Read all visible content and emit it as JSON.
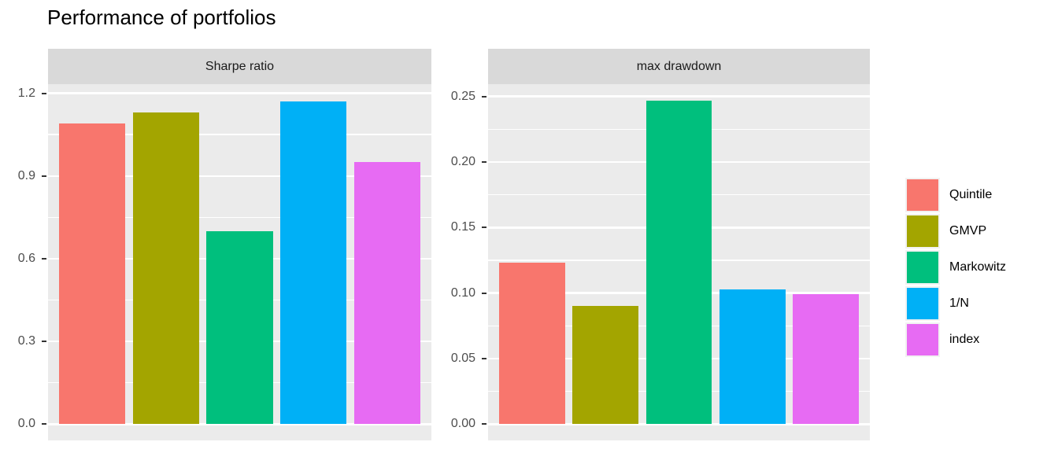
{
  "chart_data": {
    "type": "bar",
    "title": "Performance of portfolios",
    "categories": [
      "Quintile",
      "GMVP",
      "Markowitz",
      "1/N",
      "index"
    ],
    "series_colors": [
      "#F8766D",
      "#A3A500",
      "#00BF7D",
      "#00B0F6",
      "#E76BF3"
    ],
    "facets": [
      {
        "label": "Sharpe ratio",
        "values": [
          1.09,
          1.13,
          0.7,
          1.17,
          0.95
        ],
        "ylim": [
          -0.059,
          1.233
        ],
        "ytick_values": [
          0.0,
          0.3,
          0.6,
          0.9,
          1.2
        ],
        "ytick_labels": [
          "0.0",
          "0.3",
          "0.6",
          "0.9",
          "1.2"
        ],
        "ytick_minor": [
          0.15,
          0.45,
          0.75,
          1.05
        ]
      },
      {
        "label": "max drawdown",
        "values": [
          0.123,
          0.09,
          0.247,
          0.103,
          0.099
        ],
        "ylim": [
          -0.0124,
          0.2594
        ],
        "ytick_values": [
          0.0,
          0.05,
          0.1,
          0.15,
          0.2,
          0.25
        ],
        "ytick_labels": [
          "0.00",
          "0.05",
          "0.10",
          "0.15",
          "0.20",
          "0.25"
        ],
        "ytick_minor": [
          0.025,
          0.075,
          0.125,
          0.175,
          0.225
        ]
      }
    ],
    "legend": {
      "position": "right",
      "entries": [
        "Quintile",
        "GMVP",
        "Markowitz",
        "1/N",
        "index"
      ]
    },
    "style": {
      "panel_background": "#EBEBEB",
      "strip_background": "#D9D9D9",
      "grid_color": "#FFFFFF",
      "axis_text_color": "#4D4D4D",
      "tick_mark_color": "#333333",
      "bar_width_fraction": 0.9,
      "grid": "on"
    }
  }
}
